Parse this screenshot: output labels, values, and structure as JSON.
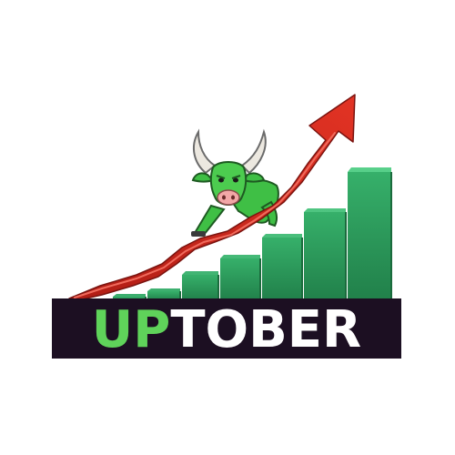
{
  "logo": {
    "wordmark_highlight": "UP",
    "wordmark_rest": "TOBER",
    "colors": {
      "highlight_text": "#5fd35a",
      "main_text": "#ffffff",
      "banner_background": "#1c0f22",
      "bars": "#2e9e5c",
      "arrow": "#d42a1f",
      "bull": "#3fbf45"
    },
    "icons": [
      "bull-mascot-icon",
      "up-trend-arrow-icon",
      "bar-chart-icon"
    ]
  }
}
